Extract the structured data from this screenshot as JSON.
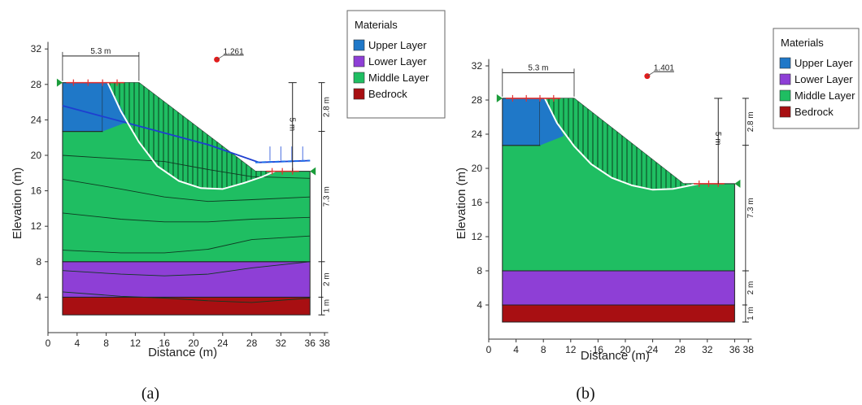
{
  "materials": {
    "upper": {
      "name": "Upper Layer",
      "color": "#1f78c8"
    },
    "lower": {
      "name": "Lower Layer",
      "color": "#8e3fd6"
    },
    "middle": {
      "name": "Middle Layer",
      "color": "#1fbe62"
    },
    "bedrock": {
      "name": "Bedrock",
      "color": "#a80f12"
    }
  },
  "legend_title": "Materials",
  "panels": [
    {
      "caption": "(a)",
      "xlabel": "Distance (m)",
      "ylabel": "Elevation (m)",
      "xticks": [
        0,
        4,
        8,
        12,
        16,
        20,
        24,
        28,
        32,
        36,
        38
      ],
      "yticks": [
        4,
        8,
        12,
        16,
        20,
        24,
        28,
        32
      ],
      "fos": "1.261",
      "fos_point": [
        23.2,
        30.8
      ],
      "dims": {
        "crest_width": "5.3 m",
        "height": "5 m",
        "upper": "2.8 m",
        "middle": "7.3 m",
        "lower": "2 m",
        "bedrock": "1 m"
      },
      "water_table": [
        [
          2,
          25.6
        ],
        [
          12,
          23.4
        ],
        [
          22,
          21.2
        ],
        [
          29,
          19.2
        ],
        [
          36,
          19.4
        ]
      ],
      "slip_surface": [
        [
          8.2,
          28.2
        ],
        [
          10,
          25
        ],
        [
          12.5,
          21.5
        ],
        [
          15,
          18.8
        ],
        [
          18,
          17.1
        ],
        [
          21,
          16.3
        ],
        [
          24,
          16.2
        ],
        [
          27,
          16.9
        ],
        [
          29.5,
          17.6
        ],
        [
          31.2,
          18.2
        ]
      ],
      "contours": [
        [
          [
            2,
            20.0
          ],
          [
            10,
            19.6
          ],
          [
            16,
            19.3
          ],
          [
            22,
            18.4
          ],
          [
            28,
            17.6
          ],
          [
            36,
            17.4
          ]
        ],
        [
          [
            2,
            17.3
          ],
          [
            10,
            16.2
          ],
          [
            16,
            15.3
          ],
          [
            22,
            14.8
          ],
          [
            28,
            15.0
          ],
          [
            36,
            15.3
          ]
        ],
        [
          [
            2,
            13.5
          ],
          [
            10,
            12.8
          ],
          [
            16,
            12.5
          ],
          [
            22,
            12.5
          ],
          [
            28,
            12.8
          ],
          [
            36,
            13.0
          ]
        ],
        [
          [
            2,
            9.3
          ],
          [
            10,
            9.0
          ],
          [
            16,
            9.0
          ],
          [
            22,
            9.4
          ],
          [
            28,
            10.5
          ],
          [
            36,
            10.9
          ]
        ],
        [
          [
            2,
            7.0
          ],
          [
            10,
            6.6
          ],
          [
            16,
            6.4
          ],
          [
            22,
            6.6
          ],
          [
            28,
            7.3
          ],
          [
            36,
            8.0
          ]
        ],
        [
          [
            2,
            4.6
          ],
          [
            10,
            4.1
          ],
          [
            16,
            3.9
          ],
          [
            22,
            3.6
          ],
          [
            28,
            3.4
          ],
          [
            36,
            3.9
          ]
        ]
      ]
    },
    {
      "caption": "(b)",
      "xlabel": "Distance (m)",
      "ylabel": "Elevation (m)",
      "xticks": [
        0,
        4,
        8,
        12,
        16,
        20,
        24,
        28,
        32,
        36,
        38
      ],
      "yticks": [
        4,
        8,
        12,
        16,
        20,
        24,
        28,
        32
      ],
      "fos": "1.401",
      "fos_point": [
        23.2,
        30.8
      ],
      "dims": {
        "crest_width": "5.3 m",
        "height": "5 m",
        "upper": "2.8 m",
        "middle": "7.3 m",
        "lower": "2 m",
        "bedrock": "1 m"
      },
      "water_table": [],
      "slip_surface": [
        [
          8.2,
          28.2
        ],
        [
          10,
          25.3
        ],
        [
          12.5,
          22.6
        ],
        [
          15,
          20.5
        ],
        [
          18,
          18.9
        ],
        [
          21,
          18.0
        ],
        [
          24,
          17.5
        ],
        [
          27,
          17.6
        ],
        [
          29.5,
          18.0
        ],
        [
          30.8,
          18.2
        ]
      ],
      "contours": []
    }
  ]
}
